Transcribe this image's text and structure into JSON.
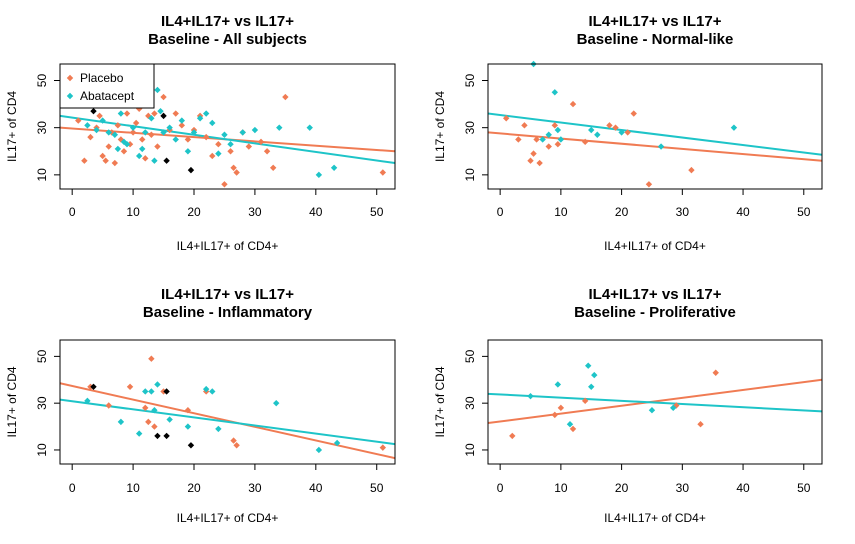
{
  "colors": {
    "Placebo": "#f07b53",
    "Abatacept": "#1ec4c8",
    "Other": "#000000"
  },
  "chart_data": [
    {
      "type": "scatter",
      "title": "IL4+IL17+ vs IL17+",
      "subtitle": "Baseline - All subjects",
      "xlabel": "IL4+IL17+ of CD4+",
      "ylabel": "IL17+ of CD4",
      "xlim": [
        -2,
        53
      ],
      "ylim": [
        4,
        57
      ],
      "xticks": [
        "0",
        "10",
        "20",
        "30",
        "40",
        "50"
      ],
      "yticks": [
        "10",
        "30",
        "50"
      ],
      "legend": {
        "position": "top-left",
        "entries": [
          "Placebo",
          "Abatacept"
        ]
      },
      "series": [
        {
          "name": "Placebo",
          "points": [
            [
              1,
              33
            ],
            [
              2,
              16
            ],
            [
              3,
              26
            ],
            [
              4,
              30
            ],
            [
              4.5,
              35
            ],
            [
              5,
              18
            ],
            [
              5.5,
              16
            ],
            [
              6,
              22
            ],
            [
              6.5,
              28
            ],
            [
              7,
              15
            ],
            [
              7.5,
              31
            ],
            [
              8,
              25
            ],
            [
              8.5,
              20
            ],
            [
              9,
              36
            ],
            [
              9.5,
              23
            ],
            [
              10,
              28
            ],
            [
              10.5,
              32
            ],
            [
              11,
              38
            ],
            [
              11.5,
              25
            ],
            [
              12,
              17
            ],
            [
              12.5,
              35
            ],
            [
              13,
              27
            ],
            [
              13.5,
              36
            ],
            [
              14,
              22
            ],
            [
              15,
              43
            ],
            [
              16,
              29
            ],
            [
              17,
              36
            ],
            [
              18,
              31
            ],
            [
              19,
              25
            ],
            [
              20,
              29
            ],
            [
              21,
              35
            ],
            [
              22,
              26
            ],
            [
              23,
              18
            ],
            [
              24,
              23
            ],
            [
              25,
              6
            ],
            [
              26,
              20
            ],
            [
              26.5,
              13
            ],
            [
              27,
              11
            ],
            [
              28,
              28
            ],
            [
              29,
              22
            ],
            [
              31,
              24
            ],
            [
              32,
              20
            ],
            [
              33,
              13
            ],
            [
              35,
              43
            ],
            [
              51,
              11
            ]
          ],
          "fit": [
            [
              -2,
              30.0
            ],
            [
              53,
              20.0
            ]
          ]
        },
        {
          "name": "Abatacept",
          "points": [
            [
              2.5,
              31
            ],
            [
              4,
              29
            ],
            [
              5,
              33
            ],
            [
              6,
              28
            ],
            [
              7,
              27
            ],
            [
              7.5,
              21
            ],
            [
              8,
              36
            ],
            [
              8.5,
              24
            ],
            [
              9,
              23
            ],
            [
              10,
              30
            ],
            [
              11,
              18
            ],
            [
              11.5,
              21
            ],
            [
              12,
              28
            ],
            [
              13,
              34
            ],
            [
              13.5,
              16
            ],
            [
              14,
              46
            ],
            [
              14.5,
              37
            ],
            [
              15,
              28
            ],
            [
              16,
              30
            ],
            [
              17,
              25
            ],
            [
              18,
              33
            ],
            [
              19,
              20
            ],
            [
              20,
              28
            ],
            [
              21,
              34
            ],
            [
              22,
              36
            ],
            [
              23,
              32
            ],
            [
              24,
              19
            ],
            [
              25,
              27
            ],
            [
              26,
              23
            ],
            [
              28,
              28
            ],
            [
              30,
              29
            ],
            [
              34,
              30
            ],
            [
              39,
              30
            ],
            [
              40.5,
              10
            ],
            [
              43,
              13
            ]
          ],
          "fit": [
            [
              -2,
              35.0
            ],
            [
              53,
              15.0
            ]
          ]
        },
        {
          "name": "",
          "points": [
            [
              3.5,
              37
            ],
            [
              15,
              35
            ],
            [
              15.5,
              16
            ],
            [
              19.5,
              12
            ]
          ]
        }
      ]
    },
    {
      "type": "scatter",
      "title": "IL4+IL17+ vs IL17+",
      "subtitle": "Baseline - Normal-like",
      "xlabel": "IL4+IL17+ of CD4+",
      "ylabel": "IL17+ of CD4",
      "xlim": [
        -2,
        53
      ],
      "ylim": [
        4,
        57
      ],
      "xticks": [
        "0",
        "10",
        "20",
        "30",
        "40",
        "50"
      ],
      "yticks": [
        "10",
        "30",
        "50"
      ],
      "series": [
        {
          "name": "Placebo",
          "points": [
            [
              1,
              34
            ],
            [
              3,
              25
            ],
            [
              4,
              31
            ],
            [
              5,
              16
            ],
            [
              5.5,
              19
            ],
            [
              6,
              25
            ],
            [
              6.5,
              15
            ],
            [
              8,
              22
            ],
            [
              9,
              31
            ],
            [
              9.5,
              23
            ],
            [
              12,
              40
            ],
            [
              14,
              24
            ],
            [
              18,
              31
            ],
            [
              19,
              30
            ],
            [
              21,
              28
            ],
            [
              22,
              36
            ],
            [
              24.5,
              6
            ],
            [
              31.5,
              12
            ]
          ],
          "fit": [
            [
              -2,
              28.0
            ],
            [
              53,
              16.0
            ]
          ]
        },
        {
          "name": "Abatacept",
          "points": [
            [
              5.5,
              57
            ],
            [
              7,
              25
            ],
            [
              8,
              27
            ],
            [
              9,
              45
            ],
            [
              9.5,
              29
            ],
            [
              10,
              25
            ],
            [
              15,
              29
            ],
            [
              16,
              27
            ],
            [
              20,
              28
            ],
            [
              26.5,
              22
            ],
            [
              38.5,
              30
            ]
          ],
          "fit": [
            [
              -2,
              36.0
            ],
            [
              53,
              18.5
            ]
          ]
        }
      ]
    },
    {
      "type": "scatter",
      "title": "IL4+IL17+ vs IL17+",
      "subtitle": "Baseline - Inflammatory",
      "xlabel": "IL4+IL17+ of CD4+",
      "ylabel": "IL17+ of CD4",
      "xlim": [
        -2,
        53
      ],
      "ylim": [
        4,
        57
      ],
      "xticks": [
        "0",
        "10",
        "20",
        "30",
        "40",
        "50"
      ],
      "yticks": [
        "10",
        "30",
        "50"
      ],
      "series": [
        {
          "name": "Placebo",
          "points": [
            [
              3,
              37
            ],
            [
              6,
              29
            ],
            [
              9.5,
              37
            ],
            [
              12,
              28
            ],
            [
              12.5,
              22
            ],
            [
              13,
              49
            ],
            [
              13.5,
              20
            ],
            [
              15,
              35
            ],
            [
              19,
              27
            ],
            [
              22,
              35
            ],
            [
              26.5,
              14
            ],
            [
              27,
              12
            ],
            [
              51,
              11
            ]
          ],
          "fit": [
            [
              -2,
              38.5
            ],
            [
              53,
              6.5
            ]
          ]
        },
        {
          "name": "Abatacept",
          "points": [
            [
              2.5,
              31
            ],
            [
              8,
              22
            ],
            [
              11,
              17
            ],
            [
              12,
              35
            ],
            [
              13,
              35
            ],
            [
              13.5,
              27
            ],
            [
              14,
              38
            ],
            [
              16,
              23
            ],
            [
              19,
              20
            ],
            [
              22,
              36
            ],
            [
              23,
              35
            ],
            [
              24,
              19
            ],
            [
              33.5,
              30
            ],
            [
              40.5,
              10
            ],
            [
              43.5,
              13
            ]
          ],
          "fit": [
            [
              -2,
              31.5
            ],
            [
              53,
              12.5
            ]
          ]
        },
        {
          "name": "",
          "points": [
            [
              3.5,
              37
            ],
            [
              14,
              16
            ],
            [
              15.5,
              35
            ],
            [
              15.5,
              16
            ],
            [
              19.5,
              12
            ]
          ]
        }
      ]
    },
    {
      "type": "scatter",
      "title": "IL4+IL17+ vs IL17+",
      "subtitle": "Baseline - Proliferative",
      "xlabel": "IL4+IL17+ of CD4+",
      "ylabel": "IL17+ of CD4",
      "xlim": [
        -2,
        53
      ],
      "ylim": [
        4,
        57
      ],
      "xticks": [
        "0",
        "10",
        "20",
        "30",
        "40",
        "50"
      ],
      "yticks": [
        "10",
        "30",
        "50"
      ],
      "series": [
        {
          "name": "Placebo",
          "points": [
            [
              2,
              16
            ],
            [
              9,
              25
            ],
            [
              10,
              28
            ],
            [
              12,
              19
            ],
            [
              14,
              31
            ],
            [
              29,
              29
            ],
            [
              33,
              21
            ],
            [
              35.5,
              43
            ]
          ],
          "fit": [
            [
              -2,
              21.5
            ],
            [
              53,
              40.0
            ]
          ]
        },
        {
          "name": "Abatacept",
          "points": [
            [
              5,
              33
            ],
            [
              9.5,
              38
            ],
            [
              11.5,
              21
            ],
            [
              14.5,
              46
            ],
            [
              15,
              37
            ],
            [
              15.5,
              42
            ],
            [
              25,
              27
            ],
            [
              28.5,
              28
            ]
          ],
          "fit": [
            [
              -2,
              34.0
            ],
            [
              53,
              26.5
            ]
          ]
        }
      ]
    }
  ]
}
